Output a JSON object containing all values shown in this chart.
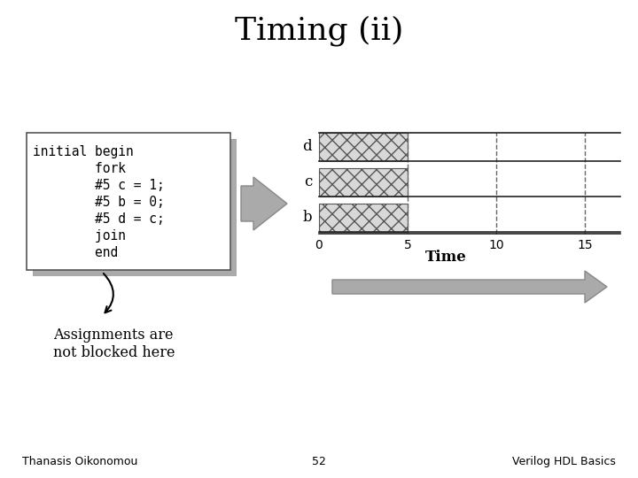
{
  "title": "Timing (ii)",
  "title_fontsize": 26,
  "bg_color": "#ffffff",
  "code_font": "monospace",
  "code_fontsize": 10.5,
  "code_lines": [
    "initial begin",
    "        fork",
    "        #5 c = 1;",
    "        #5 b = 0;",
    "        #5 d = c;",
    "        join",
    "        end"
  ],
  "annotation_text": "Assignments are\nnot blocked here",
  "footer_left": "Thanasis Oikonomou",
  "footer_center": "52",
  "footer_right": "Verilog HDL Basics",
  "footer_fontsize": 9,
  "time_label": "Time",
  "signals": [
    "d",
    "c",
    "b"
  ],
  "time_axis_ticks": [
    0,
    5,
    10,
    15
  ],
  "bar_facecolor": "#d8d8d8",
  "bar_edgecolor": "#555555",
  "dashed_line_color": "#666666",
  "shadow_color": "#aaaaaa",
  "box_edge_color": "#555555",
  "signal_line_color": "#222222",
  "arrow_face_color": "#aaaaaa",
  "arrow_edge_color": "#888888"
}
